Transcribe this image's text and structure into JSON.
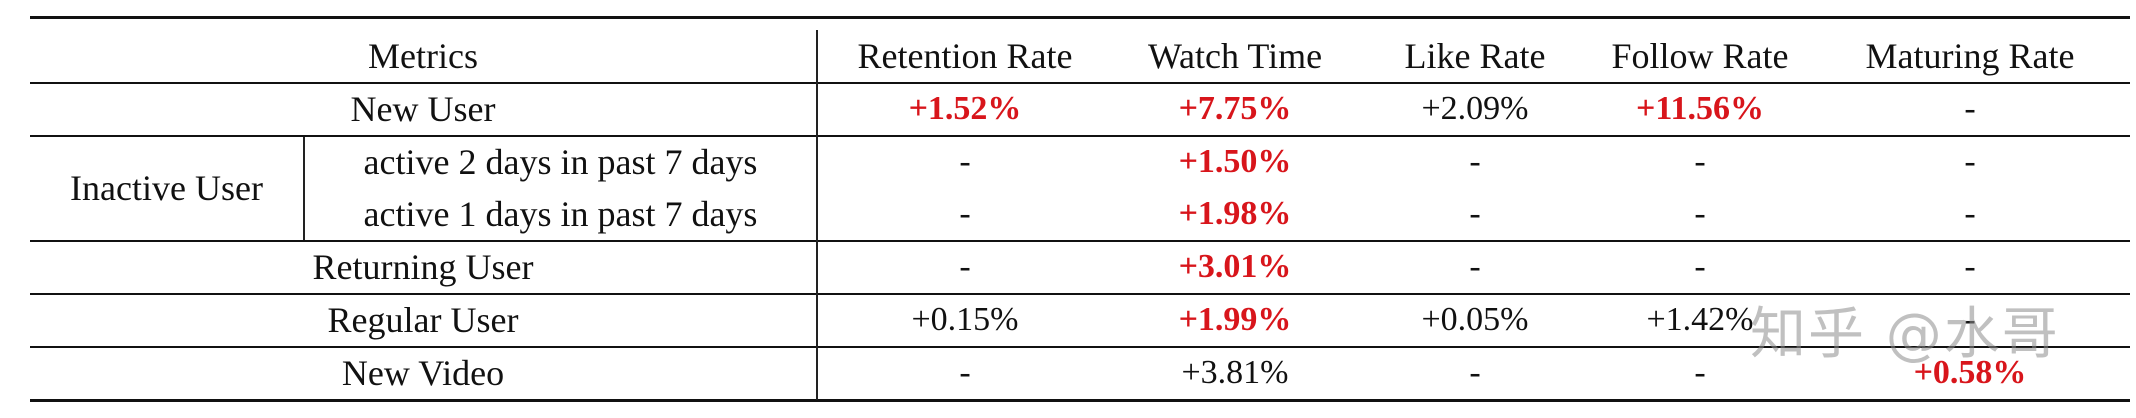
{
  "columns": [
    "Metrics",
    "Retention Rate",
    "Watch Time",
    "Like Rate",
    "Follow Rate",
    "Maturing Rate"
  ],
  "rows": [
    {
      "label": "New User",
      "values": [
        "+1.52%",
        "+7.75%",
        "+2.09%",
        "+11.56%",
        "-"
      ],
      "bold": [
        true,
        true,
        false,
        true,
        false
      ]
    },
    {
      "group": "Inactive User",
      "label": "active 2 days in past 7 days",
      "values": [
        "-",
        "+1.50%",
        "-",
        "-",
        "-"
      ],
      "bold": [
        false,
        true,
        false,
        false,
        false
      ]
    },
    {
      "group": "Inactive User",
      "label": "active 1 days in past 7 days",
      "values": [
        "-",
        "+1.98%",
        "-",
        "-",
        "-"
      ],
      "bold": [
        false,
        true,
        false,
        false,
        false
      ]
    },
    {
      "label": "Returning User",
      "values": [
        "-",
        "+3.01%",
        "-",
        "-",
        "-"
      ],
      "bold": [
        false,
        true,
        false,
        false,
        false
      ]
    },
    {
      "label": "Regular User",
      "values": [
        "+0.15%",
        "+1.99%",
        "+0.05%",
        "+1.42%",
        "-"
      ],
      "bold": [
        false,
        true,
        false,
        false,
        false
      ]
    },
    {
      "label": "New Video",
      "values": [
        "-",
        "+3.81%",
        "-",
        "-",
        "+0.58%"
      ],
      "bold": [
        false,
        false,
        false,
        false,
        true
      ]
    }
  ],
  "group_label": "Inactive User",
  "highlight_color": "#d8151b",
  "watermark": "知乎 @水哥"
}
